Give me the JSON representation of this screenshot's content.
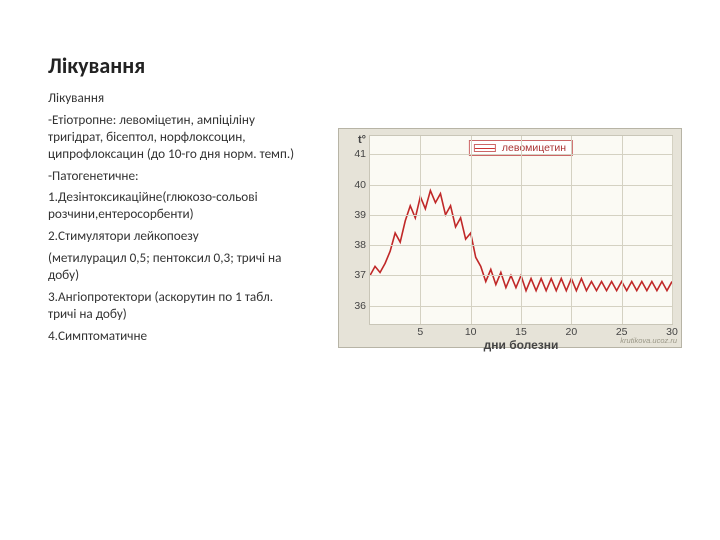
{
  "title": "Лікування",
  "paragraphs": [
    "Лікування",
    "-Етіотропне: левоміцетин, ампіціліну тригідрат, бісептол, норфлоксоцин, ципрофлоксацин (до 10-го дня норм. темп.)",
    "-Патогенетичне:",
    "1.Дезінтоксикаційне(глюкозо-сольові розчини,ентеросорбенти)",
    "2.Стимулятори лейкопоезу",
    "(метилурацил 0,5; пентоксил 0,3; тричі на добу)",
    "3.Ангіопротектори (аскорутин по 1 табл. тричі на добу)",
    "4.Симптоматичне"
  ],
  "chart": {
    "type": "line",
    "y_title": "t°",
    "x_title": "дни болезни",
    "legend_label": "левомицетин",
    "y_ticks": [
      36,
      37,
      38,
      39,
      40,
      41
    ],
    "ylim": [
      35.4,
      41.6
    ],
    "x_ticks": [
      5,
      10,
      15,
      20,
      25,
      30
    ],
    "xlim": [
      0,
      30
    ],
    "grid_color": "#d4d1c2",
    "background_color": "#fbfaf4",
    "outer_background": "#e6e3d8",
    "line_color": "#c02828",
    "line_width": 1.6,
    "label_fontsize": 10.5,
    "title_fontsize": 12,
    "watermark": "krutikova.ucoz.ru",
    "series": [
      {
        "x": 0.0,
        "y": 37.0
      },
      {
        "x": 0.5,
        "y": 37.3
      },
      {
        "x": 1.0,
        "y": 37.1
      },
      {
        "x": 1.5,
        "y": 37.4
      },
      {
        "x": 2.0,
        "y": 37.8
      },
      {
        "x": 2.5,
        "y": 38.4
      },
      {
        "x": 3.0,
        "y": 38.1
      },
      {
        "x": 3.5,
        "y": 38.8
      },
      {
        "x": 4.0,
        "y": 39.3
      },
      {
        "x": 4.5,
        "y": 38.9
      },
      {
        "x": 5.0,
        "y": 39.6
      },
      {
        "x": 5.5,
        "y": 39.2
      },
      {
        "x": 6.0,
        "y": 39.8
      },
      {
        "x": 6.5,
        "y": 39.4
      },
      {
        "x": 7.0,
        "y": 39.7
      },
      {
        "x": 7.5,
        "y": 39.0
      },
      {
        "x": 8.0,
        "y": 39.3
      },
      {
        "x": 8.5,
        "y": 38.6
      },
      {
        "x": 9.0,
        "y": 38.9
      },
      {
        "x": 9.5,
        "y": 38.2
      },
      {
        "x": 10.0,
        "y": 38.4
      },
      {
        "x": 10.5,
        "y": 37.6
      },
      {
        "x": 11.0,
        "y": 37.3
      },
      {
        "x": 11.5,
        "y": 36.8
      },
      {
        "x": 12.0,
        "y": 37.2
      },
      {
        "x": 12.5,
        "y": 36.7
      },
      {
        "x": 13.0,
        "y": 37.1
      },
      {
        "x": 13.5,
        "y": 36.6
      },
      {
        "x": 14.0,
        "y": 37.0
      },
      {
        "x": 14.5,
        "y": 36.6
      },
      {
        "x": 15.0,
        "y": 37.0
      },
      {
        "x": 15.5,
        "y": 36.5
      },
      {
        "x": 16.0,
        "y": 36.9
      },
      {
        "x": 16.5,
        "y": 36.5
      },
      {
        "x": 17.0,
        "y": 36.9
      },
      {
        "x": 17.5,
        "y": 36.5
      },
      {
        "x": 18.0,
        "y": 36.9
      },
      {
        "x": 18.5,
        "y": 36.5
      },
      {
        "x": 19.0,
        "y": 36.9
      },
      {
        "x": 19.5,
        "y": 36.5
      },
      {
        "x": 20.0,
        "y": 36.9
      },
      {
        "x": 20.5,
        "y": 36.5
      },
      {
        "x": 21.0,
        "y": 36.9
      },
      {
        "x": 21.5,
        "y": 36.5
      },
      {
        "x": 22.0,
        "y": 36.8
      },
      {
        "x": 22.5,
        "y": 36.5
      },
      {
        "x": 23.0,
        "y": 36.8
      },
      {
        "x": 23.5,
        "y": 36.5
      },
      {
        "x": 24.0,
        "y": 36.8
      },
      {
        "x": 24.5,
        "y": 36.5
      },
      {
        "x": 25.0,
        "y": 36.8
      },
      {
        "x": 25.5,
        "y": 36.5
      },
      {
        "x": 26.0,
        "y": 36.8
      },
      {
        "x": 26.5,
        "y": 36.5
      },
      {
        "x": 27.0,
        "y": 36.8
      },
      {
        "x": 27.5,
        "y": 36.5
      },
      {
        "x": 28.0,
        "y": 36.8
      },
      {
        "x": 28.5,
        "y": 36.5
      },
      {
        "x": 29.0,
        "y": 36.8
      },
      {
        "x": 29.5,
        "y": 36.5
      },
      {
        "x": 30.0,
        "y": 36.8
      }
    ]
  }
}
